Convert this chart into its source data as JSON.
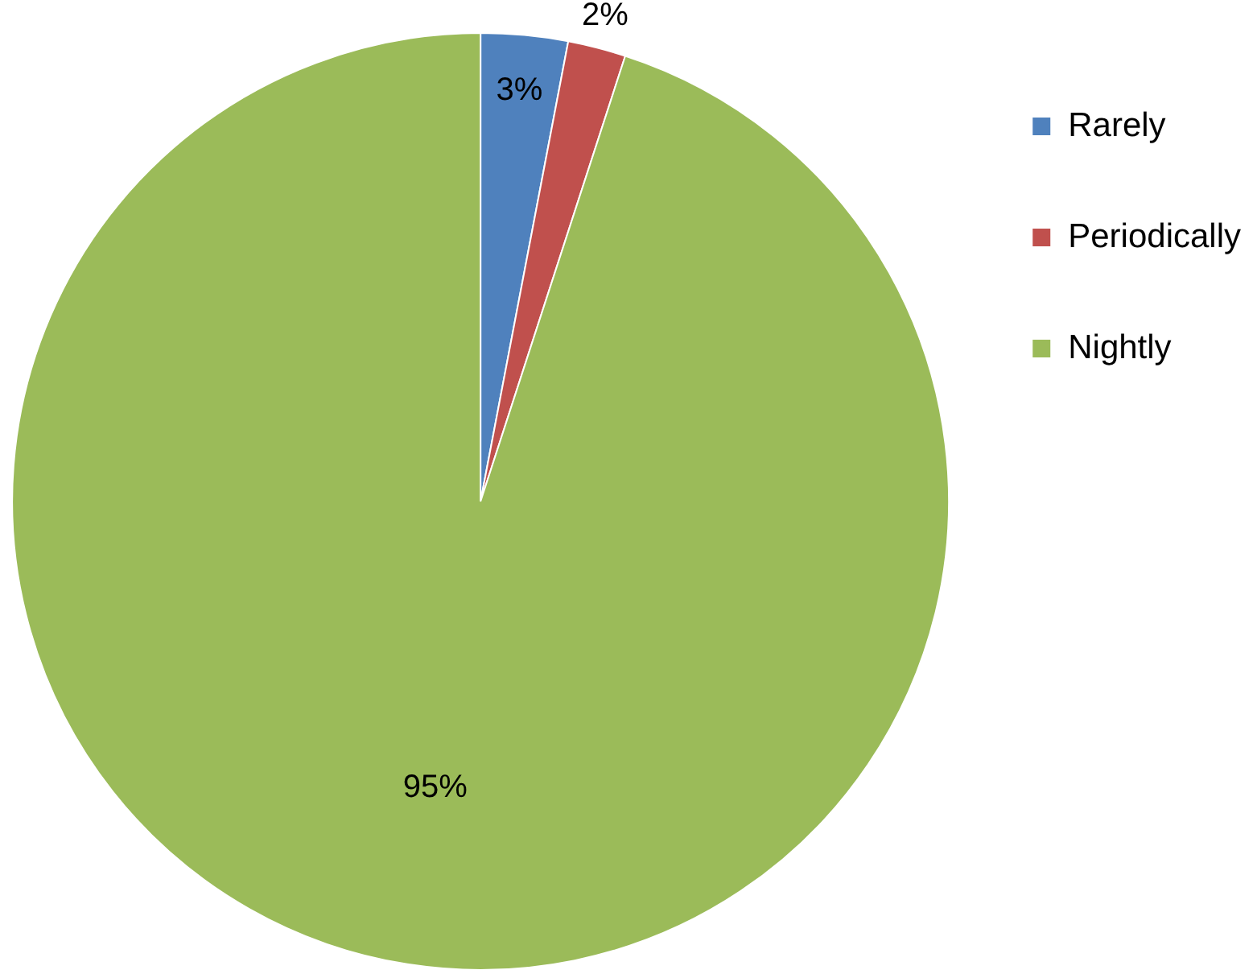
{
  "chart_data": {
    "type": "pie",
    "categories": [
      "Rarely",
      "Periodically",
      "Nightly"
    ],
    "values": [
      3,
      2,
      95
    ],
    "colors": [
      "#4f81bd",
      "#c0504d",
      "#9bbb59"
    ],
    "value_labels": [
      "3%",
      "2%",
      "95%"
    ],
    "legend": "top right"
  }
}
